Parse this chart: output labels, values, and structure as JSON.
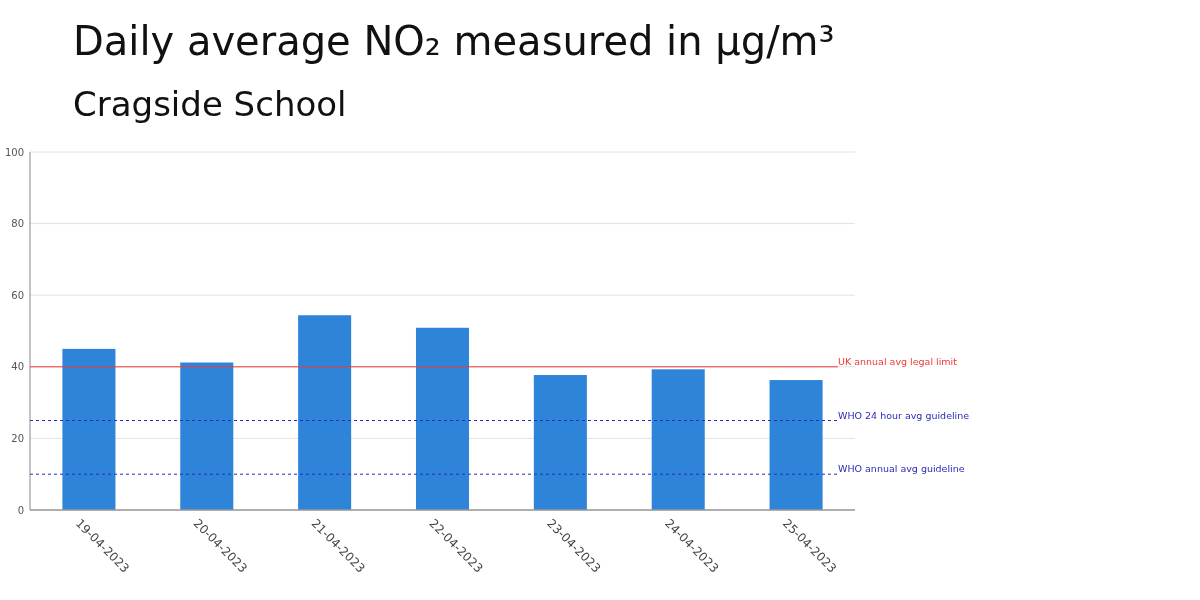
{
  "chart_data": {
    "type": "bar",
    "title": "Daily average NO₂ measured in µg/m³",
    "subtitle": "Cragside School",
    "categories": [
      "19-04-2023",
      "20-04-2023",
      "21-04-2023",
      "22-04-2023",
      "23-04-2023",
      "24-04-2023",
      "25-04-2023"
    ],
    "values": [
      45.0,
      41.2,
      54.4,
      50.9,
      37.7,
      39.3,
      36.3
    ],
    "color": "#2e84d8",
    "ylim": [
      0,
      100
    ],
    "yticks": [
      0,
      20,
      40,
      60,
      80,
      100
    ],
    "grid": "y",
    "ref_lines": [
      {
        "axis": "y",
        "value": 40,
        "label": "UK annual avg legal limit",
        "color": "#f03838",
        "line_style": "solid"
      },
      {
        "axis": "y",
        "value": 25,
        "label": "WHO 24 hour avg guideline",
        "color": "#2a2ab8",
        "line_style": "dashed"
      },
      {
        "axis": "y",
        "value": 10,
        "label": "WHO annual avg guideline",
        "color": "#2a2ab8",
        "line_style": "dashed"
      }
    ]
  }
}
